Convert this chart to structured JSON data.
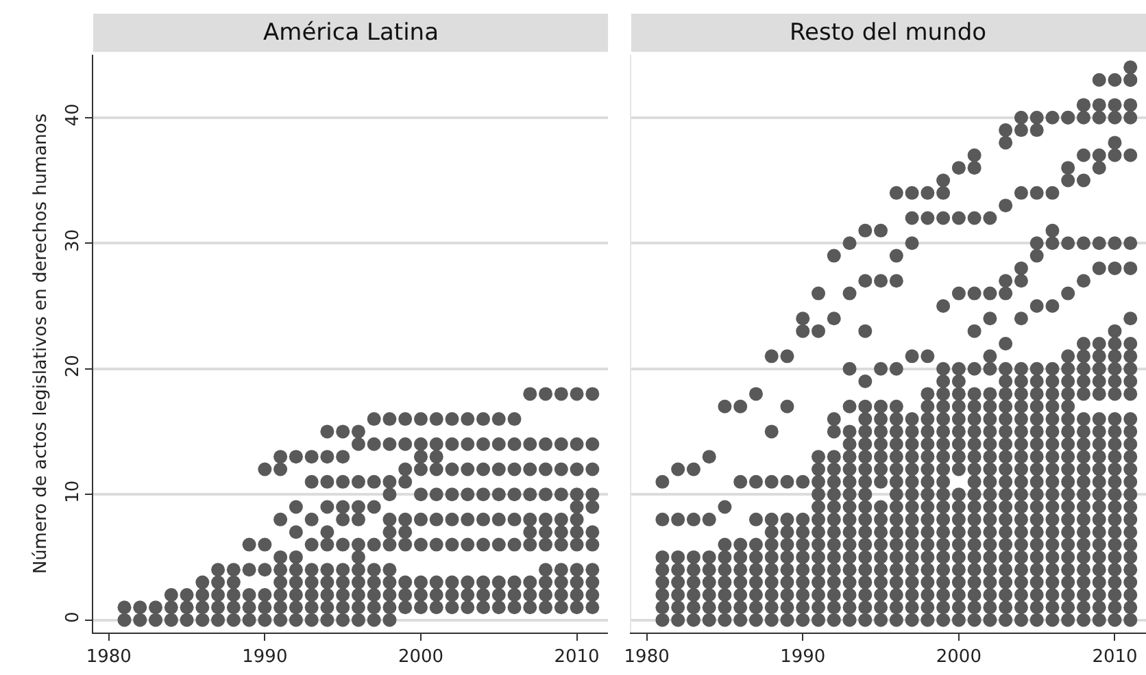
{
  "chart_data": [
    {
      "type": "scatter",
      "title": "América Latina",
      "ylabel": "Número de actos legislativos en derechos humanos",
      "marker": "circle",
      "grid": "y",
      "xlim": [
        1979,
        2012
      ],
      "xticks": [
        1980,
        1990,
        2000,
        2010
      ],
      "ylim": [
        -1,
        45
      ],
      "yticks": [
        0,
        10,
        20,
        30,
        40
      ],
      "series": [
        {
          "color": "#595959",
          "x": [
            1981,
            1981,
            1982,
            1982,
            1983,
            1983,
            1984,
            1984,
            1984,
            1985,
            1985,
            1985,
            1986,
            1986,
            1986,
            1986,
            1987,
            1987,
            1987,
            1987,
            1987,
            1988,
            1988,
            1988,
            1988,
            1988,
            1989,
            1989,
            1989,
            1989,
            1989,
            1990,
            1990,
            1990,
            1990,
            1990,
            1990,
            1991,
            1991,
            1991,
            1991,
            1991,
            1991,
            1991,
            1991,
            1991,
            1992,
            1992,
            1992,
            1992,
            1992,
            1992,
            1992,
            1992,
            1992,
            1993,
            1993,
            1993,
            1993,
            1993,
            1993,
            1993,
            1993,
            1993,
            1994,
            1994,
            1994,
            1994,
            1994,
            1994,
            1994,
            1994,
            1994,
            1994,
            1994,
            1995,
            1995,
            1995,
            1995,
            1995,
            1995,
            1995,
            1995,
            1995,
            1995,
            1995,
            1996,
            1996,
            1996,
            1996,
            1996,
            1996,
            1996,
            1996,
            1996,
            1996,
            1996,
            1996,
            1997,
            1997,
            1997,
            1997,
            1997,
            1997,
            1997,
            1997,
            1997,
            1997,
            1998,
            1998,
            1998,
            1998,
            1998,
            1998,
            1998,
            1998,
            1998,
            1998,
            1998,
            1998,
            1999,
            1999,
            1999,
            1999,
            1999,
            1999,
            1999,
            1999,
            1999,
            1999,
            2000,
            2000,
            2000,
            2000,
            2000,
            2000,
            2000,
            2000,
            2000,
            2000,
            2001,
            2001,
            2001,
            2001,
            2001,
            2001,
            2001,
            2001,
            2001,
            2001,
            2002,
            2002,
            2002,
            2002,
            2002,
            2002,
            2002,
            2002,
            2002,
            2003,
            2003,
            2003,
            2003,
            2003,
            2003,
            2003,
            2003,
            2003,
            2004,
            2004,
            2004,
            2004,
            2004,
            2004,
            2004,
            2004,
            2004,
            2005,
            2005,
            2005,
            2005,
            2005,
            2005,
            2005,
            2005,
            2005,
            2006,
            2006,
            2006,
            2006,
            2006,
            2006,
            2006,
            2006,
            2006,
            2007,
            2007,
            2007,
            2007,
            2007,
            2007,
            2007,
            2007,
            2007,
            2007,
            2008,
            2008,
            2008,
            2008,
            2008,
            2008,
            2008,
            2008,
            2008,
            2008,
            2008,
            2009,
            2009,
            2009,
            2009,
            2009,
            2009,
            2009,
            2009,
            2009,
            2009,
            2009,
            2010,
            2010,
            2010,
            2010,
            2010,
            2010,
            2010,
            2010,
            2010,
            2010,
            2010,
            2010,
            2011,
            2011,
            2011,
            2011,
            2011,
            2011,
            2011,
            2011,
            2011,
            2011,
            2011
          ],
          "values": [
            0,
            1,
            0,
            1,
            0,
            1,
            0,
            1,
            2,
            0,
            1,
            2,
            0,
            1,
            2,
            3,
            0,
            1,
            2,
            3,
            4,
            0,
            1,
            2,
            3,
            4,
            0,
            1,
            2,
            4,
            6,
            0,
            1,
            2,
            4,
            6,
            12,
            0,
            1,
            2,
            3,
            4,
            5,
            8,
            12,
            13,
            0,
            1,
            2,
            3,
            4,
            5,
            7,
            9,
            13,
            0,
            1,
            2,
            3,
            4,
            6,
            8,
            11,
            13,
            0,
            1,
            2,
            3,
            4,
            6,
            7,
            9,
            11,
            13,
            15,
            0,
            1,
            2,
            3,
            4,
            6,
            8,
            9,
            11,
            13,
            15,
            0,
            1,
            2,
            3,
            4,
            5,
            6,
            8,
            9,
            11,
            14,
            15,
            0,
            1,
            2,
            3,
            4,
            6,
            9,
            11,
            14,
            16,
            0,
            1,
            2,
            3,
            4,
            6,
            7,
            8,
            10,
            11,
            14,
            16,
            1,
            2,
            3,
            6,
            7,
            8,
            11,
            12,
            14,
            16,
            1,
            2,
            3,
            6,
            8,
            10,
            12,
            13,
            14,
            16,
            1,
            2,
            3,
            6,
            8,
            10,
            12,
            13,
            14,
            16,
            1,
            2,
            3,
            6,
            8,
            10,
            12,
            14,
            16,
            1,
            2,
            3,
            6,
            8,
            10,
            12,
            14,
            16,
            1,
            2,
            3,
            6,
            8,
            10,
            12,
            14,
            16,
            1,
            2,
            3,
            6,
            8,
            10,
            12,
            14,
            16,
            1,
            2,
            3,
            6,
            8,
            10,
            12,
            14,
            16,
            1,
            2,
            3,
            6,
            7,
            8,
            10,
            12,
            14,
            18,
            1,
            2,
            3,
            4,
            6,
            7,
            8,
            10,
            12,
            14,
            18,
            1,
            2,
            3,
            4,
            6,
            7,
            8,
            10,
            12,
            14,
            18,
            1,
            2,
            3,
            4,
            6,
            7,
            8,
            9,
            10,
            12,
            14,
            18,
            1,
            2,
            3,
            4,
            6,
            7,
            9,
            10,
            12,
            14,
            18
          ]
        }
      ]
    },
    {
      "type": "scatter",
      "title": "Resto del mundo",
      "marker": "circle",
      "grid": "y",
      "tick_labels": "x",
      "xlim": [
        1979,
        2012
      ],
      "xticks": [
        1980,
        1990,
        2000,
        2010
      ],
      "ylim": [
        -1,
        45
      ],
      "yticks": [
        0,
        10,
        20,
        30,
        40
      ],
      "series": [
        {
          "color": "#595959",
          "x": [
            1981,
            1981,
            1981,
            1981,
            1981,
            1981,
            1981,
            1981,
            1982,
            1982,
            1982,
            1982,
            1982,
            1982,
            1982,
            1982,
            1983,
            1983,
            1983,
            1983,
            1983,
            1983,
            1983,
            1983,
            1984,
            1984,
            1984,
            1984,
            1984,
            1984,
            1984,
            1984,
            1985,
            1985,
            1985,
            1985,
            1985,
            1985,
            1985,
            1985,
            1985,
            1986,
            1986,
            1986,
            1986,
            1986,
            1986,
            1986,
            1986,
            1986,
            1987,
            1987,
            1987,
            1987,
            1987,
            1987,
            1987,
            1987,
            1987,
            1987,
            1988,
            1988,
            1988,
            1988,
            1988,
            1988,
            1988,
            1988,
            1988,
            1988,
            1988,
            1988,
            1989,
            1989,
            1989,
            1989,
            1989,
            1989,
            1989,
            1989,
            1989,
            1989,
            1989,
            1989,
            1990,
            1990,
            1990,
            1990,
            1990,
            1990,
            1990,
            1990,
            1990,
            1990,
            1990,
            1990,
            1991,
            1991,
            1991,
            1991,
            1991,
            1991,
            1991,
            1991,
            1991,
            1991,
            1991,
            1991,
            1991,
            1991,
            1991,
            1991,
            1992,
            1992,
            1992,
            1992,
            1992,
            1992,
            1992,
            1992,
            1992,
            1992,
            1992,
            1992,
            1992,
            1992,
            1992,
            1992,
            1992,
            1992,
            1993,
            1993,
            1993,
            1993,
            1993,
            1993,
            1993,
            1993,
            1993,
            1993,
            1993,
            1993,
            1993,
            1993,
            1993,
            1993,
            1993,
            1993,
            1993,
            1993,
            1994,
            1994,
            1994,
            1994,
            1994,
            1994,
            1994,
            1994,
            1994,
            1994,
            1994,
            1994,
            1994,
            1994,
            1994,
            1994,
            1994,
            1994,
            1994,
            1994,
            1994,
            1994,
            1995,
            1995,
            1995,
            1995,
            1995,
            1995,
            1995,
            1995,
            1995,
            1995,
            1995,
            1995,
            1995,
            1995,
            1995,
            1995,
            1995,
            1995,
            1995,
            1995,
            1996,
            1996,
            1996,
            1996,
            1996,
            1996,
            1996,
            1996,
            1996,
            1996,
            1996,
            1996,
            1996,
            1996,
            1996,
            1996,
            1996,
            1996,
            1996,
            1996,
            1996,
            1996,
            1997,
            1997,
            1997,
            1997,
            1997,
            1997,
            1997,
            1997,
            1997,
            1997,
            1997,
            1997,
            1997,
            1997,
            1997,
            1997,
            1997,
            1997,
            1997,
            1997,
            1997,
            1998,
            1998,
            1998,
            1998,
            1998,
            1998,
            1998,
            1998,
            1998,
            1998,
            1998,
            1998,
            1998,
            1998,
            1998,
            1998,
            1998,
            1998,
            1998,
            1998,
            1998,
            1998,
            1999,
            1999,
            1999,
            1999,
            1999,
            1999,
            1999,
            1999,
            1999,
            1999,
            1999,
            1999,
            1999,
            1999,
            1999,
            1999,
            1999,
            1999,
            1999,
            1999,
            1999,
            1999,
            1999,
            1999,
            1999,
            2000,
            2000,
            2000,
            2000,
            2000,
            2000,
            2000,
            2000,
            2000,
            2000,
            2000,
            2000,
            2000,
            2000,
            2000,
            2000,
            2000,
            2000,
            2000,
            2000,
            2000,
            2000,
            2000,
            2001,
            2001,
            2001,
            2001,
            2001,
            2001,
            2001,
            2001,
            2001,
            2001,
            2001,
            2001,
            2001,
            2001,
            2001,
            2001,
            2001,
            2001,
            2001,
            2001,
            2001,
            2001,
            2001,
            2001,
            2001,
            2002,
            2002,
            2002,
            2002,
            2002,
            2002,
            2002,
            2002,
            2002,
            2002,
            2002,
            2002,
            2002,
            2002,
            2002,
            2002,
            2002,
            2002,
            2002,
            2002,
            2002,
            2002,
            2002,
            2002,
            2003,
            2003,
            2003,
            2003,
            2003,
            2003,
            2003,
            2003,
            2003,
            2003,
            2003,
            2003,
            2003,
            2003,
            2003,
            2003,
            2003,
            2003,
            2003,
            2003,
            2003,
            2003,
            2003,
            2003,
            2003,
            2003,
            2003,
            2004,
            2004,
            2004,
            2004,
            2004,
            2004,
            2004,
            2004,
            2004,
            2004,
            2004,
            2004,
            2004,
            2004,
            2004,
            2004,
            2004,
            2004,
            2004,
            2004,
            2004,
            2004,
            2004,
            2004,
            2004,
            2004,
            2004,
            2005,
            2005,
            2005,
            2005,
            2005,
            2005,
            2005,
            2005,
            2005,
            2005,
            2005,
            2005,
            2005,
            2005,
            2005,
            2005,
            2005,
            2005,
            2005,
            2005,
            2005,
            2005,
            2005,
            2005,
            2005,
            2005,
            2005,
            2006,
            2006,
            2006,
            2006,
            2006,
            2006,
            2006,
            2006,
            2006,
            2006,
            2006,
            2006,
            2006,
            2006,
            2006,
            2006,
            2006,
            2006,
            2006,
            2006,
            2006,
            2006,
            2006,
            2006,
            2006,
            2006,
            2007,
            2007,
            2007,
            2007,
            2007,
            2007,
            2007,
            2007,
            2007,
            2007,
            2007,
            2007,
            2007,
            2007,
            2007,
            2007,
            2007,
            2007,
            2007,
            2007,
            2007,
            2007,
            2007,
            2007,
            2007,
            2007,
            2007,
            2007,
            2008,
            2008,
            2008,
            2008,
            2008,
            2008,
            2008,
            2008,
            2008,
            2008,
            2008,
            2008,
            2008,
            2008,
            2008,
            2008,
            2008,
            2008,
            2008,
            2008,
            2008,
            2008,
            2008,
            2008,
            2008,
            2008,
            2008,
            2008,
            2008,
            2009,
            2009,
            2009,
            2009,
            2009,
            2009,
            2009,
            2009,
            2009,
            2009,
            2009,
            2009,
            2009,
            2009,
            2009,
            2009,
            2009,
            2009,
            2009,
            2009,
            2009,
            2009,
            2009,
            2009,
            2009,
            2009,
            2009,
            2009,
            2009,
            2010,
            2010,
            2010,
            2010,
            2010,
            2010,
            2010,
            2010,
            2010,
            2010,
            2010,
            2010,
            2010,
            2010,
            2010,
            2010,
            2010,
            2010,
            2010,
            2010,
            2010,
            2010,
            2010,
            2010,
            2010,
            2010,
            2010,
            2010,
            2010,
            2010,
            2011,
            2011,
            2011,
            2011,
            2011,
            2011,
            2011,
            2011,
            2011,
            2011,
            2011,
            2011,
            2011,
            2011,
            2011,
            2011,
            2011,
            2011,
            2011,
            2011,
            2011,
            2011,
            2011,
            2011,
            2011,
            2011,
            2011,
            2011,
            2011,
            2011,
            2011
          ],
          "values": [
            0,
            1,
            2,
            3,
            4,
            5,
            8,
            11,
            0,
            1,
            2,
            3,
            4,
            5,
            8,
            12,
            0,
            1,
            2,
            3,
            4,
            5,
            8,
            12,
            0,
            1,
            2,
            3,
            4,
            5,
            8,
            13,
            0,
            1,
            2,
            3,
            4,
            5,
            6,
            9,
            17,
            0,
            1,
            2,
            3,
            4,
            5,
            6,
            11,
            17,
            0,
            1,
            2,
            3,
            4,
            5,
            6,
            8,
            11,
            18,
            0,
            1,
            2,
            3,
            4,
            5,
            6,
            7,
            8,
            11,
            15,
            21,
            0,
            1,
            2,
            3,
            4,
            5,
            6,
            7,
            8,
            11,
            17,
            21,
            0,
            1,
            2,
            3,
            4,
            5,
            6,
            7,
            8,
            11,
            23,
            24,
            0,
            1,
            2,
            3,
            4,
            5,
            6,
            7,
            8,
            9,
            10,
            11,
            12,
            13,
            23,
            26,
            0,
            1,
            2,
            3,
            4,
            5,
            6,
            7,
            8,
            9,
            10,
            11,
            12,
            13,
            15,
            16,
            24,
            29,
            0,
            1,
            2,
            3,
            4,
            5,
            6,
            7,
            8,
            9,
            10,
            11,
            12,
            13,
            14,
            15,
            17,
            20,
            26,
            30,
            0,
            1,
            2,
            3,
            4,
            5,
            6,
            7,
            8,
            9,
            10,
            11,
            12,
            13,
            14,
            15,
            16,
            17,
            19,
            23,
            27,
            31,
            0,
            1,
            2,
            3,
            4,
            5,
            6,
            7,
            8,
            9,
            11,
            12,
            13,
            14,
            15,
            16,
            17,
            20,
            27,
            31,
            0,
            1,
            2,
            3,
            4,
            5,
            6,
            7,
            8,
            9,
            10,
            11,
            12,
            13,
            14,
            15,
            16,
            17,
            20,
            27,
            29,
            34,
            0,
            1,
            2,
            3,
            4,
            5,
            6,
            7,
            8,
            9,
            10,
            11,
            12,
            13,
            14,
            15,
            16,
            21,
            30,
            32,
            34,
            0,
            1,
            2,
            3,
            4,
            5,
            6,
            7,
            8,
            9,
            10,
            11,
            12,
            13,
            14,
            15,
            16,
            17,
            18,
            21,
            32,
            34,
            0,
            1,
            2,
            3,
            4,
            5,
            6,
            7,
            8,
            9,
            10,
            11,
            12,
            13,
            14,
            15,
            16,
            17,
            18,
            19,
            20,
            25,
            32,
            34,
            35,
            0,
            1,
            2,
            3,
            4,
            5,
            6,
            7,
            8,
            9,
            10,
            12,
            13,
            14,
            15,
            16,
            17,
            18,
            19,
            20,
            26,
            32,
            36,
            0,
            1,
            2,
            3,
            4,
            5,
            6,
            7,
            8,
            9,
            10,
            11,
            12,
            13,
            14,
            15,
            16,
            17,
            18,
            20,
            23,
            26,
            32,
            36,
            37,
            0,
            1,
            2,
            3,
            4,
            5,
            6,
            7,
            8,
            9,
            10,
            11,
            12,
            13,
            14,
            15,
            16,
            17,
            18,
            20,
            21,
            24,
            26,
            32,
            38,
            0,
            1,
            2,
            3,
            4,
            5,
            6,
            7,
            8,
            9,
            10,
            11,
            12,
            13,
            14,
            15,
            16,
            17,
            18,
            19,
            20,
            22,
            26,
            27,
            33,
            39,
            40,
            0,
            1,
            2,
            3,
            4,
            5,
            6,
            7,
            8,
            9,
            10,
            11,
            12,
            13,
            14,
            15,
            16,
            17,
            18,
            19,
            20,
            24,
            27,
            28,
            34,
            39,
            40,
            0,
            1,
            2,
            3,
            4,
            5,
            6,
            7,
            8,
            9,
            10,
            11,
            12,
            13,
            14,
            15,
            16,
            17,
            18,
            19,
            20,
            25,
            29,
            30,
            34,
            39,
            40,
            0,
            1,
            2,
            3,
            4,
            5,
            6,
            7,
            8,
            9,
            10,
            11,
            12,
            13,
            14,
            15,
            16,
            17,
            18,
            19,
            20,
            25,
            30,
            31,
            34,
            40,
            0,
            1,
            2,
            3,
            4,
            5,
            6,
            7,
            8,
            9,
            10,
            11,
            12,
            13,
            14,
            15,
            16,
            17,
            18,
            19,
            20,
            21,
            26,
            30,
            35,
            36,
            40,
            41,
            0,
            1,
            2,
            3,
            4,
            5,
            6,
            7,
            8,
            9,
            10,
            11,
            12,
            13,
            14,
            15,
            16,
            18,
            19,
            20,
            21,
            22,
            27,
            30,
            35,
            37,
            40,
            41,
            43,
            0,
            1,
            2,
            3,
            4,
            5,
            6,
            7,
            8,
            9,
            10,
            11,
            12,
            13,
            14,
            15,
            16,
            18,
            19,
            20,
            21,
            22,
            28,
            30,
            36,
            37,
            40,
            41,
            43,
            0,
            1,
            2,
            3,
            4,
            5,
            6,
            7,
            8,
            9,
            10,
            11,
            12,
            13,
            14,
            15,
            16,
            18,
            19,
            20,
            21,
            22,
            23,
            28,
            30,
            37,
            38,
            40,
            41,
            43,
            0,
            1,
            2,
            3,
            4,
            5,
            6,
            7,
            8,
            9,
            10,
            11,
            12,
            13,
            14,
            15,
            16,
            18,
            19,
            20,
            21,
            22,
            24,
            28,
            30,
            37,
            40,
            41,
            43,
            44
          ]
        }
      ]
    }
  ]
}
